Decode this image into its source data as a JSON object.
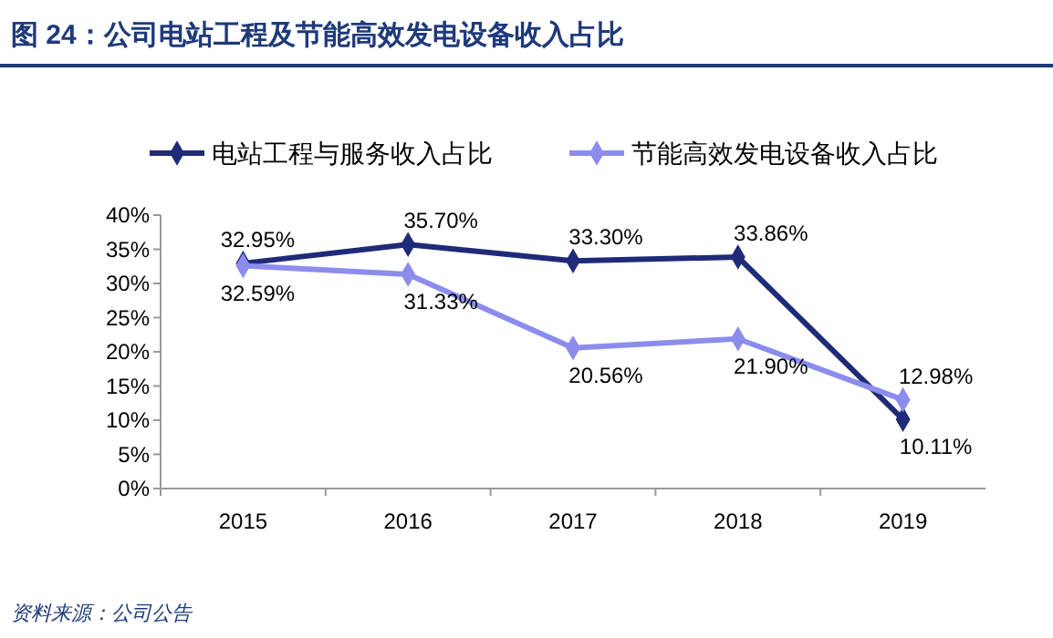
{
  "chart_data": {
    "type": "line",
    "title": "图 24：公司电站工程及节能高效发电设备收入占比",
    "categories": [
      "2015",
      "2016",
      "2017",
      "2018",
      "2019"
    ],
    "series": [
      {
        "name": "电站工程与服务收入占比",
        "color": "#1f2a78",
        "values": [
          32.95,
          35.7,
          33.3,
          33.86,
          10.11
        ],
        "value_labels": [
          "32.95%",
          "35.70%",
          "33.30%",
          "33.86%",
          "10.11%"
        ]
      },
      {
        "name": "节能高效发电设备收入占比",
        "color": "#8c8ced",
        "values": [
          32.59,
          31.33,
          20.56,
          21.9,
          12.98
        ],
        "value_labels": [
          "32.59%",
          "31.33%",
          "20.56%",
          "21.90%",
          "12.98%"
        ]
      }
    ],
    "ylim": [
      0,
      40
    ],
    "yticks": [
      {
        "value": 0,
        "label": "0%"
      },
      {
        "value": 5,
        "label": "5%"
      },
      {
        "value": 10,
        "label": "10%"
      },
      {
        "value": 15,
        "label": "15%"
      },
      {
        "value": 20,
        "label": "20%"
      },
      {
        "value": 25,
        "label": "25%"
      },
      {
        "value": 30,
        "label": "30%"
      },
      {
        "value": 35,
        "label": "35%"
      },
      {
        "value": 40,
        "label": "40%"
      }
    ],
    "grid": false,
    "legend": "top",
    "marker": "diamond",
    "line_style": "solid",
    "annotations": [
      "资料来源：公司公告"
    ]
  }
}
